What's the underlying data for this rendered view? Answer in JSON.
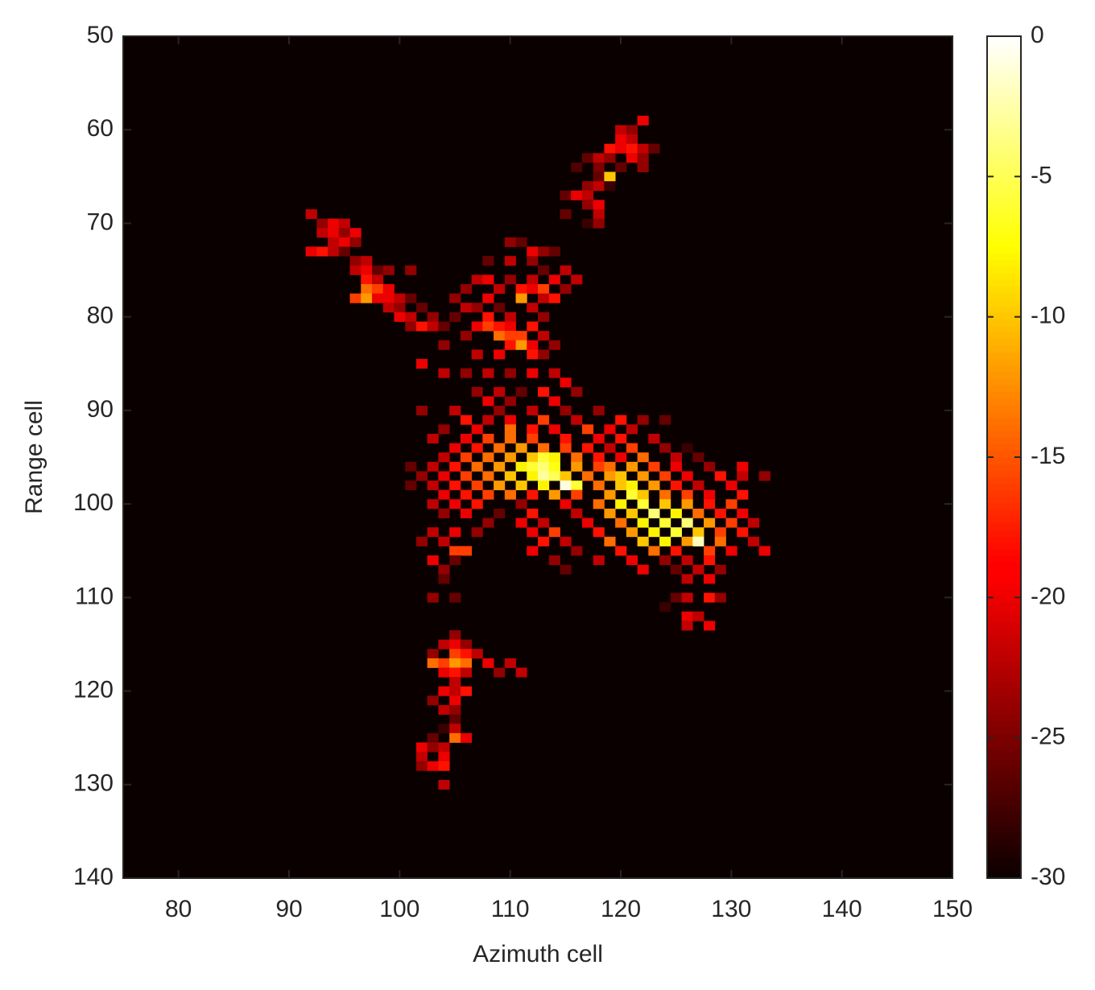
{
  "chart_data": {
    "type": "heatmap",
    "xlabel": "Azimuth cell",
    "ylabel": "Range cell",
    "xlim": [
      75,
      150
    ],
    "xticks": [
      80,
      90,
      100,
      110,
      120,
      130,
      140,
      150
    ],
    "ylim": [
      50,
      140
    ],
    "yticks": [
      50,
      60,
      70,
      80,
      90,
      100,
      110,
      120,
      130,
      140
    ],
    "y_direction": "reverse",
    "colormap": "hot",
    "clim": [
      -30,
      0
    ],
    "cticks": [
      0,
      -5,
      -10,
      -15,
      -20,
      -25,
      -30
    ],
    "rows": [
      {
        "y": 59,
        "x": [
          122
        ],
        "values": [
          -20
        ]
      },
      {
        "y": 60,
        "x": [
          120,
          121
        ],
        "values": [
          -22,
          -24
        ]
      },
      {
        "y": 61,
        "x": [
          120,
          121
        ],
        "values": [
          -20,
          -22
        ]
      },
      {
        "y": 62,
        "x": [
          119,
          120,
          121,
          122,
          123
        ],
        "values": [
          -18,
          -20,
          -18,
          -22,
          -26
        ]
      },
      {
        "y": 63,
        "x": [
          117,
          118,
          119,
          121,
          122
        ],
        "values": [
          -26,
          -22,
          -24,
          -20,
          -24
        ]
      },
      {
        "y": 64,
        "x": [
          116,
          118,
          120,
          122
        ],
        "values": [
          -27,
          -25,
          -26,
          -24
        ]
      },
      {
        "y": 65,
        "x": [
          118,
          119
        ],
        "values": [
          -26,
          -10
        ]
      },
      {
        "y": 66,
        "x": [
          117,
          118,
          119
        ],
        "values": [
          -24,
          -22,
          -28
        ]
      },
      {
        "y": 67,
        "x": [
          115,
          116,
          117
        ],
        "values": [
          -26,
          -20,
          -22
        ]
      },
      {
        "y": 68,
        "x": [
          117,
          118
        ],
        "values": [
          -24,
          -20
        ]
      },
      {
        "y": 69,
        "x": [
          92,
          115,
          118
        ],
        "values": [
          -22,
          -26,
          -22
        ]
      },
      {
        "y": 70,
        "x": [
          93,
          94,
          95,
          117,
          118
        ],
        "values": [
          -24,
          -20,
          -22,
          -28,
          -24
        ]
      },
      {
        "y": 71,
        "x": [
          93,
          94,
          95,
          96
        ],
        "values": [
          -22,
          -20,
          -24,
          -20
        ]
      },
      {
        "y": 72,
        "x": [
          94,
          95,
          96,
          110,
          111
        ],
        "values": [
          -22,
          -20,
          -24,
          -24,
          -26
        ]
      },
      {
        "y": 73,
        "x": [
          92,
          93,
          94,
          95,
          112,
          113,
          114
        ],
        "values": [
          -20,
          -18,
          -22,
          -26,
          -20,
          -24,
          -26
        ]
      },
      {
        "y": 74,
        "x": [
          96,
          97,
          108,
          110,
          112
        ],
        "values": [
          -24,
          -22,
          -26,
          -22,
          -24
        ]
      },
      {
        "y": 75,
        "x": [
          96,
          97,
          98,
          99,
          101,
          113,
          115
        ],
        "values": [
          -22,
          -20,
          -26,
          -24,
          -24,
          -26,
          -22
        ]
      },
      {
        "y": 76,
        "x": [
          97,
          98,
          107,
          108,
          110,
          112,
          114,
          116
        ],
        "values": [
          -18,
          -22,
          -22,
          -20,
          -24,
          -22,
          -20,
          -22
        ]
      },
      {
        "y": 77,
        "x": [
          97,
          98,
          99,
          106,
          109,
          111,
          112,
          113,
          115
        ],
        "values": [
          -14,
          -16,
          -20,
          -24,
          -22,
          -18,
          -20,
          -16,
          -24
        ]
      },
      {
        "y": 78,
        "x": [
          96,
          97,
          98,
          99,
          100,
          101,
          105,
          108,
          111,
          113,
          114
        ],
        "values": [
          -16,
          -12,
          -20,
          -20,
          -22,
          -26,
          -24,
          -20,
          -12,
          -22,
          -18
        ]
      },
      {
        "y": 79,
        "x": [
          99,
          100,
          102,
          106,
          107,
          109,
          112
        ],
        "values": [
          -22,
          -24,
          -26,
          -22,
          -24,
          -26,
          -22
        ]
      },
      {
        "y": 80,
        "x": [
          100,
          101,
          103,
          105,
          108,
          110,
          113
        ],
        "values": [
          -20,
          -22,
          -24,
          -26,
          -18,
          -22,
          -24
        ]
      },
      {
        "y": 81,
        "x": [
          101,
          102,
          103,
          104,
          107,
          108,
          109,
          110,
          112
        ],
        "values": [
          -24,
          -18,
          -22,
          -26,
          -20,
          -16,
          -18,
          -20,
          -18
        ]
      },
      {
        "y": 82,
        "x": [
          106,
          109,
          110,
          111,
          113
        ],
        "values": [
          -24,
          -14,
          -16,
          -16,
          -22
        ]
      },
      {
        "y": 83,
        "x": [
          104,
          110,
          111,
          112,
          114
        ],
        "values": [
          -24,
          -18,
          -12,
          -20,
          -24
        ]
      },
      {
        "y": 84,
        "x": [
          107,
          109,
          112,
          113
        ],
        "values": [
          -22,
          -20,
          -18,
          -24
        ]
      },
      {
        "y": 85,
        "x": [
          102
        ],
        "values": [
          -20
        ]
      },
      {
        "y": 86,
        "x": [
          104,
          106,
          108,
          110,
          112,
          114
        ],
        "values": [
          -22,
          -24,
          -22,
          -24,
          -20,
          -22
        ]
      },
      {
        "y": 87,
        "x": [
          115
        ],
        "values": [
          -20
        ]
      },
      {
        "y": 88,
        "x": [
          107,
          109,
          111,
          113,
          116
        ],
        "values": [
          -24,
          -22,
          -26,
          -18,
          -24
        ]
      },
      {
        "y": 89,
        "x": [
          108,
          110,
          114
        ],
        "values": [
          -20,
          -24,
          -20
        ]
      },
      {
        "y": 90,
        "x": [
          102,
          105,
          109,
          112,
          115,
          118
        ],
        "values": [
          -24,
          -22,
          -24,
          -22,
          -24,
          -24
        ]
      },
      {
        "y": 91,
        "x": [
          106,
          108,
          110,
          113,
          116,
          120,
          122,
          124
        ],
        "values": [
          -18,
          -22,
          -20,
          -16,
          -22,
          -18,
          -24,
          -26
        ]
      },
      {
        "y": 92,
        "x": [
          104,
          107,
          110,
          112,
          114,
          117,
          119,
          121
        ],
        "values": [
          -24,
          -20,
          -14,
          -18,
          -20,
          -16,
          -20,
          -22
        ]
      },
      {
        "y": 93,
        "x": [
          103,
          106,
          108,
          110,
          112,
          115,
          118,
          120,
          123
        ],
        "values": [
          -22,
          -20,
          -16,
          -14,
          -16,
          -18,
          -20,
          -18,
          -22
        ]
      },
      {
        "y": 94,
        "x": [
          105,
          107,
          109,
          111,
          113,
          115,
          117,
          119,
          121,
          124,
          126
        ],
        "values": [
          -20,
          -18,
          -14,
          -12,
          -14,
          -16,
          -18,
          -22,
          -16,
          -24,
          -28
        ]
      },
      {
        "y": 95,
        "x": [
          104,
          106,
          108,
          110,
          112,
          113,
          114,
          116,
          118,
          120,
          122,
          125,
          127
        ],
        "values": [
          -22,
          -16,
          -14,
          -12,
          -10,
          -6,
          -8,
          -14,
          -18,
          -20,
          -14,
          -22,
          -26
        ]
      },
      {
        "y": 96,
        "x": [
          101,
          103,
          105,
          107,
          109,
          111,
          112,
          113,
          114,
          116,
          118,
          119,
          121,
          123,
          125,
          128,
          131
        ],
        "values": [
          -26,
          -22,
          -18,
          -14,
          -12,
          -8,
          -6,
          -4,
          -7,
          -12,
          -16,
          -14,
          -12,
          -16,
          -20,
          -24,
          -20
        ]
      },
      {
        "y": 97,
        "x": [
          102,
          104,
          106,
          108,
          110,
          112,
          113,
          114,
          115,
          117,
          119,
          120,
          122,
          124,
          126,
          129,
          131,
          133
        ],
        "values": [
          -24,
          -20,
          -16,
          -14,
          -10,
          -8,
          -3,
          -5,
          -10,
          -14,
          -12,
          -10,
          -12,
          -16,
          -20,
          -18,
          -22,
          -24
        ]
      },
      {
        "y": 98,
        "x": [
          101,
          103,
          105,
          107,
          109,
          111,
          113,
          115,
          116,
          118,
          120,
          121,
          123,
          125,
          127,
          130
        ],
        "values": [
          -26,
          -22,
          -18,
          -16,
          -12,
          -10,
          -8,
          -1,
          -6,
          -14,
          -10,
          -8,
          -12,
          -18,
          -22,
          -20
        ]
      },
      {
        "y": 99,
        "x": [
          104,
          106,
          108,
          110,
          112,
          114,
          116,
          119,
          121,
          122,
          124,
          126,
          128,
          131
        ],
        "values": [
          -20,
          -18,
          -16,
          -14,
          -18,
          -12,
          -16,
          -12,
          -6,
          -10,
          -14,
          -16,
          -20,
          -18
        ]
      },
      {
        "y": 100,
        "x": [
          103,
          105,
          107,
          111,
          115,
          118,
          120,
          122,
          124,
          126,
          128,
          130
        ],
        "values": [
          -22,
          -20,
          -18,
          -24,
          -20,
          -14,
          -8,
          -6,
          -10,
          -12,
          -18,
          -16
        ]
      },
      {
        "y": 101,
        "x": [
          104,
          106,
          109,
          112,
          116,
          119,
          121,
          123,
          125,
          127,
          129,
          131
        ],
        "values": [
          -24,
          -20,
          -26,
          -18,
          -22,
          -12,
          -10,
          -4,
          -8,
          -14,
          -18,
          -20
        ]
      },
      {
        "y": 102,
        "x": [
          108,
          111,
          113,
          117,
          120,
          122,
          124,
          126,
          128,
          130,
          132
        ],
        "values": [
          -24,
          -20,
          -22,
          -20,
          -14,
          -8,
          -6,
          -4,
          -12,
          -16,
          -22
        ]
      },
      {
        "y": 103,
        "x": [
          103,
          105,
          107,
          112,
          114,
          118,
          121,
          123,
          125,
          127,
          129,
          131
        ],
        "values": [
          -22,
          -20,
          -24,
          -20,
          -16,
          -18,
          -12,
          -8,
          -6,
          -10,
          -16,
          -18
        ]
      },
      {
        "y": 104,
        "x": [
          102,
          104,
          113,
          115,
          119,
          122,
          124,
          126,
          127,
          129,
          132
        ],
        "values": [
          -24,
          -22,
          -18,
          -22,
          -14,
          -10,
          -8,
          -12,
          -2,
          -14,
          -22
        ]
      },
      {
        "y": 105,
        "x": [
          105,
          106,
          112,
          116,
          120,
          123,
          125,
          126,
          128,
          130,
          133
        ],
        "values": [
          -16,
          -16,
          -20,
          -24,
          -18,
          -14,
          -18,
          -30,
          -16,
          -20,
          -20
        ]
      },
      {
        "y": 106,
        "x": [
          103,
          105,
          114,
          118,
          121,
          124,
          126,
          128
        ],
        "values": [
          -20,
          -26,
          -24,
          -22,
          -20,
          -24,
          -22,
          -18
        ]
      },
      {
        "y": 107,
        "x": [
          104,
          115,
          122,
          125,
          127,
          129
        ],
        "values": [
          -24,
          -26,
          -20,
          -26,
          -22,
          -24
        ]
      },
      {
        "y": 108,
        "x": [
          104,
          126,
          128
        ],
        "values": [
          -26,
          -22,
          -20
        ]
      },
      {
        "y": 110,
        "x": [
          103,
          105,
          125,
          126,
          128,
          129
        ],
        "values": [
          -24,
          -26,
          -26,
          -22,
          -18,
          -24
        ]
      },
      {
        "y": 111,
        "x": [
          124
        ],
        "values": [
          -28
        ]
      },
      {
        "y": 112,
        "x": [
          126,
          127
        ],
        "values": [
          -20,
          -22
        ]
      },
      {
        "y": 113,
        "x": [
          126,
          128
        ],
        "values": [
          -22,
          -20
        ]
      },
      {
        "y": 114,
        "x": [
          105
        ],
        "values": [
          -24
        ]
      },
      {
        "y": 115,
        "x": [
          104,
          105,
          106
        ],
        "values": [
          -22,
          -20,
          -24
        ]
      },
      {
        "y": 116,
        "x": [
          103,
          105,
          106,
          107
        ],
        "values": [
          -24,
          -16,
          -18,
          -22
        ]
      },
      {
        "y": 117,
        "x": [
          103,
          104,
          105,
          106,
          108,
          110
        ],
        "values": [
          -14,
          -16,
          -12,
          -14,
          -20,
          -22
        ]
      },
      {
        "y": 118,
        "x": [
          104,
          105,
          106,
          109,
          111
        ],
        "values": [
          -20,
          -18,
          -22,
          -24,
          -22
        ]
      },
      {
        "y": 119,
        "x": [
          105
        ],
        "values": [
          -22
        ]
      },
      {
        "y": 120,
        "x": [
          104,
          105,
          106
        ],
        "values": [
          -20,
          -22,
          -18
        ]
      },
      {
        "y": 121,
        "x": [
          103,
          105
        ],
        "values": [
          -24,
          -20
        ]
      },
      {
        "y": 122,
        "x": [
          104,
          105
        ],
        "values": [
          -22,
          -24
        ]
      },
      {
        "y": 123,
        "x": [
          105
        ],
        "values": [
          -26
        ]
      },
      {
        "y": 124,
        "x": [
          104,
          105
        ],
        "values": [
          -28,
          -22
        ]
      },
      {
        "y": 125,
        "x": [
          103,
          105,
          106
        ],
        "values": [
          -26,
          -14,
          -20
        ]
      },
      {
        "y": 126,
        "x": [
          102,
          103,
          104
        ],
        "values": [
          -20,
          -24,
          -22
        ]
      },
      {
        "y": 127,
        "x": [
          102,
          104
        ],
        "values": [
          -22,
          -20
        ]
      },
      {
        "y": 128,
        "x": [
          102,
          103,
          104
        ],
        "values": [
          -24,
          -20,
          -18
        ]
      },
      {
        "y": 130,
        "x": [
          104
        ],
        "values": [
          -22
        ]
      }
    ]
  }
}
